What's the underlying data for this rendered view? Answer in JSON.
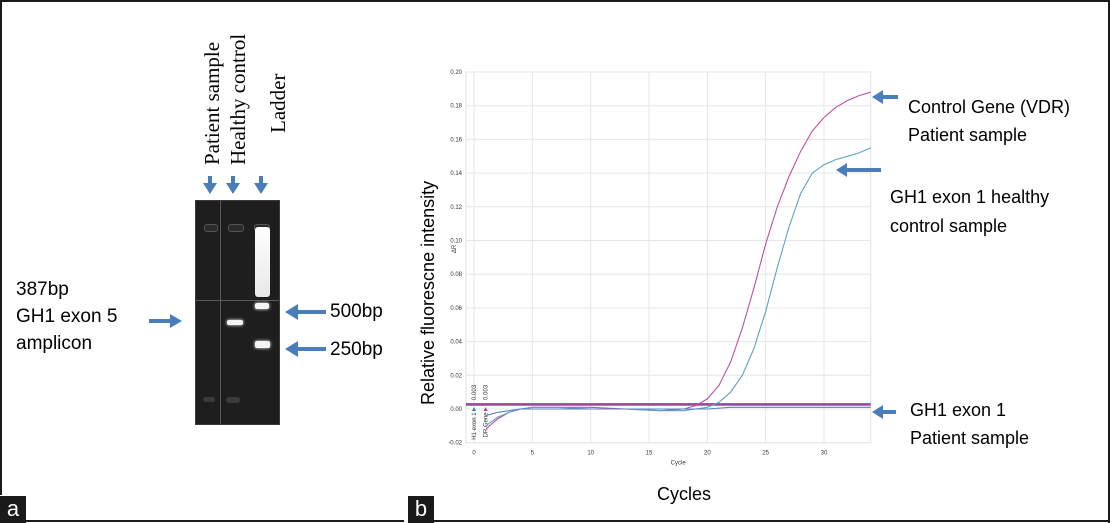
{
  "figure": {
    "panel_labels": [
      "a",
      "b"
    ]
  },
  "panel_a": {
    "lane_labels": [
      "Patient sample",
      "Healthy control",
      "Ladder"
    ],
    "left_annotation": [
      "387bp",
      "GH1 exon 5",
      "amplicon"
    ],
    "ladder_annotations": [
      "500bp",
      "250bp"
    ],
    "arrow_color": "#4a7ebb",
    "gel": {
      "lanes": [
        {
          "name": "Patient sample",
          "bands": []
        },
        {
          "name": "Healthy control",
          "bands": [
            "387bp"
          ]
        },
        {
          "name": "Ladder",
          "bands": [
            "high MW smear",
            "500bp",
            "250bp"
          ]
        }
      ]
    }
  },
  "chart_data": {
    "type": "line",
    "title": "",
    "xlabel": "Cycles",
    "ylabel": "Relative fluorescne intensity",
    "inner_xlabel": "Cycle",
    "inner_ylabel": "ΔR",
    "xlim": [
      0,
      34
    ],
    "ylim": [
      -0.02,
      0.2
    ],
    "x_ticks": [
      "0",
      "5",
      "10",
      "15",
      "20",
      "25",
      "30"
    ],
    "x_tick_values": [
      0,
      5,
      10,
      15,
      20,
      25,
      30
    ],
    "y_ticks": [
      "-0.02",
      "0.00",
      "0.02",
      "0.04",
      "0.06",
      "0.08",
      "0.10",
      "0.12",
      "0.14",
      "0.16",
      "0.18",
      "0.20"
    ],
    "y_tick_values": [
      -0.02,
      0.0,
      0.02,
      0.04,
      0.06,
      0.08,
      0.1,
      0.12,
      0.14,
      0.16,
      0.18,
      0.2
    ],
    "grid": true,
    "thresholds": [
      {
        "label": "H1 exon 1",
        "value": 0.003,
        "value_label": "0.003",
        "color": "#3a7fb0"
      },
      {
        "label": "DR  Gene",
        "value": 0.003,
        "value_label": "0.003",
        "color": "#c0338a"
      }
    ],
    "series": [
      {
        "name": "Control Gene (VDR) Patient sample",
        "color": "#c24fa3",
        "x": [
          1,
          2,
          3,
          4,
          5,
          7,
          10,
          13,
          16,
          18,
          19,
          20,
          21,
          22,
          23,
          24,
          25,
          26,
          27,
          28,
          29,
          30,
          31,
          32,
          33,
          34
        ],
        "y": [
          -0.012,
          -0.006,
          -0.002,
          0.0,
          0.001,
          0.001,
          0.001,
          0.0,
          -0.001,
          0.0,
          0.002,
          0.006,
          0.014,
          0.028,
          0.048,
          0.072,
          0.098,
          0.12,
          0.138,
          0.153,
          0.165,
          0.173,
          0.179,
          0.183,
          0.186,
          0.188
        ]
      },
      {
        "name": "GH1 exon 1 healthy control sample",
        "color": "#5ba3c4",
        "x": [
          1,
          2,
          3,
          4,
          5,
          7,
          10,
          13,
          16,
          18,
          19,
          20,
          21,
          22,
          23,
          24,
          25,
          26,
          27,
          28,
          29,
          30,
          31,
          32,
          33,
          34
        ],
        "y": [
          -0.01,
          -0.005,
          -0.002,
          0.0,
          0.001,
          0.001,
          0.0,
          0.0,
          -0.001,
          -0.001,
          0.0,
          0.001,
          0.004,
          0.01,
          0.02,
          0.036,
          0.058,
          0.084,
          0.108,
          0.128,
          0.14,
          0.145,
          0.148,
          0.15,
          0.152,
          0.155
        ]
      },
      {
        "name": "GH1 exon 1 Patient sample",
        "color": "#5b7fbf",
        "x": [
          1,
          2,
          3,
          4,
          5,
          7,
          10,
          13,
          16,
          18,
          20,
          22,
          25,
          28,
          30,
          32,
          34
        ],
        "y": [
          -0.004,
          -0.002,
          -0.001,
          0.0,
          0.0,
          0.0,
          0.0,
          0.0,
          0.0,
          0.0,
          0.0,
          0.001,
          0.001,
          0.001,
          0.001,
          0.001,
          0.001
        ]
      }
    ],
    "annotations": [
      {
        "text": [
          "Control Gene (VDR)",
          "Patient sample"
        ],
        "points_to": "Control Gene (VDR) Patient sample"
      },
      {
        "text": [
          "GH1 exon  1 healthy",
          "control sample"
        ],
        "points_to": "GH1 exon 1 healthy control sample"
      },
      {
        "text": [
          "GH1 exon  1",
          "Patient sample"
        ],
        "points_to": "GH1 exon 1 Patient sample"
      }
    ],
    "legend": "right"
  }
}
